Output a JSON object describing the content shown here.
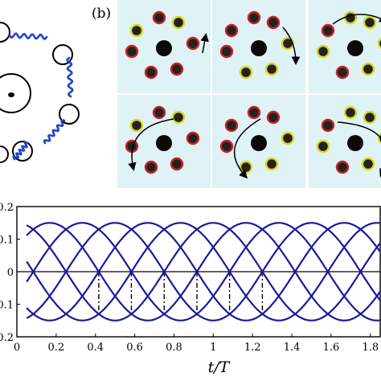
{
  "figure": {
    "panel_b_label": "(b)"
  },
  "chart_data": {
    "type": "line",
    "xlabel": "t/T",
    "xlim": [
      0,
      1.85
    ],
    "ylim": [
      -0.2,
      0.2
    ],
    "x_ticks": [
      "0",
      "0.2",
      "0.4",
      "0.6",
      "0.8",
      "1",
      "1.2",
      "1.4",
      "1.6",
      "1.8"
    ],
    "y_ticks": [
      "0.2",
      "0.1",
      "0",
      "0.1",
      "0.2"
    ],
    "series_params": {
      "amplitude": 0.15,
      "period": 1,
      "phases_deg": [
        0,
        60,
        120,
        180,
        240,
        300
      ],
      "color": "#1a1a99"
    },
    "reference_line_y": 0,
    "dashed_markers_x": [
      0.417,
      0.583,
      0.75,
      0.917,
      1.083,
      1.25
    ],
    "dashed_marker_color": "#000000"
  },
  "colors": {
    "tile_bg": "#dff2f5",
    "red_particle_fill": "#222222",
    "red_particle_ring": "#cc2222",
    "yellow_particle_ring": "#d8d81a",
    "center_particle": "#0a0a0a",
    "polymer_blue": "#2244cc"
  }
}
